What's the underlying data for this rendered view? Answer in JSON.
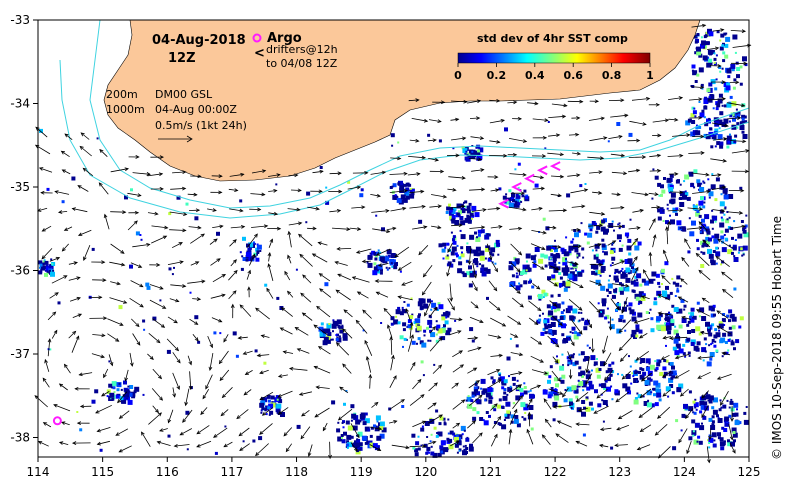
{
  "header": {
    "date": "04-Aug-2018",
    "time": "12Z"
  },
  "legend": {
    "argo_label": "Argo",
    "drifters_label": "drifters@12h",
    "drifters_to": "to 04/08 12Z",
    "contour_200": "200m",
    "contour_1000": "1000m",
    "product": "DM00 GSL",
    "product_time": "04-Aug 00:00Z",
    "vector_scale": "0.5m/s (1kt 24h)"
  },
  "colorbar": {
    "title": "std dev of 4hr SST comp",
    "ticks": [
      "0",
      "0.2",
      "0.4",
      "0.6",
      "0.8",
      "1"
    ]
  },
  "credit": "© IMOS 10-Sep-2018 09:55 Hobart Time",
  "axes": {
    "x_ticks": [
      "114",
      "115",
      "116",
      "117",
      "118",
      "119",
      "120",
      "121",
      "122",
      "123",
      "124",
      "125"
    ],
    "y_ticks": [
      "-33",
      "-34",
      "-35",
      "-36",
      "-37",
      "-38"
    ]
  },
  "colors": {
    "land": "#fbc89a",
    "contour": "#3fd3e0",
    "ocean": "#ffffff",
    "argo": "#ff1aff",
    "drifter": "#ff1aff"
  },
  "map_data": {
    "lon_range": [
      114,
      125
    ],
    "lat_range": [
      -38.5,
      -33
    ],
    "argo_floats": [
      {
        "lon": 114.3,
        "lat": -37.8
      }
    ],
    "drifters": [
      {
        "lon": 121.2,
        "lat": -35.2
      },
      {
        "lon": 121.4,
        "lat": -35.0
      },
      {
        "lon": 121.6,
        "lat": -34.9
      },
      {
        "lon": 121.8,
        "lat": -34.8
      },
      {
        "lon": 122.0,
        "lat": -34.75
      }
    ]
  }
}
